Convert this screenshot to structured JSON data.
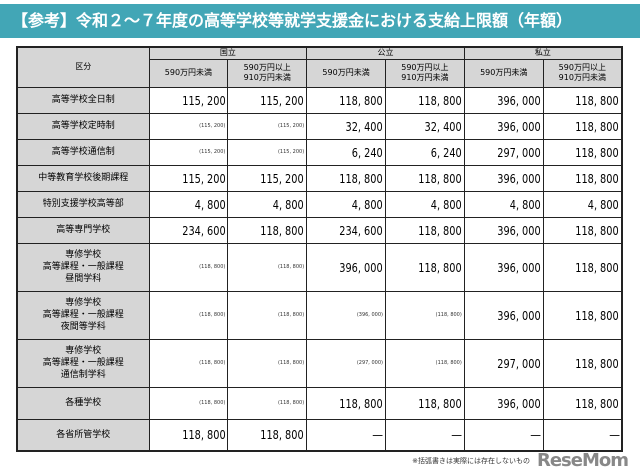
{
  "title": "【参考】令和２～７年度の高等学校等就学支援金における支給上限額（年額）",
  "header": {
    "category": "区分",
    "groups": [
      "国立",
      "公立",
      "私立"
    ],
    "sub": [
      "590万円未満",
      "590万円以上\n910万円未満"
    ]
  },
  "rows": [
    {
      "label": "高等学校全日制",
      "cells": [
        [
          "115, 200",
          0
        ],
        [
          "115, 200",
          0
        ],
        [
          "118, 800",
          0
        ],
        [
          "118, 800",
          0
        ],
        [
          "396, 000",
          0
        ],
        [
          "118, 800",
          0
        ]
      ]
    },
    {
      "label": "高等学校定時制",
      "cells": [
        [
          "(115, 200)",
          1
        ],
        [
          "(115, 200)",
          1
        ],
        [
          "32, 400",
          0
        ],
        [
          "32, 400",
          0
        ],
        [
          "396, 000",
          0
        ],
        [
          "118, 800",
          0
        ]
      ]
    },
    {
      "label": "高等学校通信制",
      "cells": [
        [
          "(115, 200)",
          1
        ],
        [
          "(115, 200)",
          1
        ],
        [
          "6, 240",
          0
        ],
        [
          "6, 240",
          0
        ],
        [
          "297, 000",
          0
        ],
        [
          "118, 800",
          0
        ]
      ]
    },
    {
      "label": "中等教育学校後期課程",
      "cells": [
        [
          "115, 200",
          0
        ],
        [
          "115, 200",
          0
        ],
        [
          "118, 800",
          0
        ],
        [
          "118, 800",
          0
        ],
        [
          "396, 000",
          0
        ],
        [
          "118, 800",
          0
        ]
      ]
    },
    {
      "label": "特別支援学校高等部",
      "cells": [
        [
          "4, 800",
          0
        ],
        [
          "4, 800",
          0
        ],
        [
          "4, 800",
          0
        ],
        [
          "4, 800",
          0
        ],
        [
          "4, 800",
          0
        ],
        [
          "4, 800",
          0
        ]
      ]
    },
    {
      "label": "高等専門学校",
      "cells": [
        [
          "234, 600",
          0
        ],
        [
          "118, 800",
          0
        ],
        [
          "234, 600",
          0
        ],
        [
          "118, 800",
          0
        ],
        [
          "396, 000",
          0
        ],
        [
          "118, 800",
          0
        ]
      ]
    },
    {
      "label": "専修学校\n高等課程・一般課程\n昼間学科",
      "cells": [
        [
          "(118, 800)",
          1
        ],
        [
          "(118, 800)",
          1
        ],
        [
          "396, 000",
          0
        ],
        [
          "118, 800",
          0
        ],
        [
          "396, 000",
          0
        ],
        [
          "118, 800",
          0
        ]
      ]
    },
    {
      "label": "専修学校\n高等課程・一般課程\n夜間等学科",
      "cells": [
        [
          "(118, 800)",
          1
        ],
        [
          "(118, 800)",
          1
        ],
        [
          "(396, 000)",
          1
        ],
        [
          "(118, 800)",
          1
        ],
        [
          "396, 000",
          0
        ],
        [
          "118, 800",
          0
        ]
      ]
    },
    {
      "label": "専修学校\n高等課程・一般課程\n通信制学科",
      "cells": [
        [
          "(118, 800)",
          1
        ],
        [
          "(118, 800)",
          1
        ],
        [
          "(297, 000)",
          1
        ],
        [
          "(118, 800)",
          1
        ],
        [
          "297, 000",
          0
        ],
        [
          "118, 800",
          0
        ]
      ]
    },
    {
      "label": "各種学校",
      "cells": [
        [
          "(118, 800)",
          1
        ],
        [
          "(118, 800)",
          1
        ],
        [
          "118, 800",
          0
        ],
        [
          "118, 800",
          0
        ],
        [
          "396, 000",
          0
        ],
        [
          "118, 800",
          0
        ]
      ]
    },
    {
      "label": "各省所管学校",
      "cells": [
        [
          "118, 800",
          0
        ],
        [
          "118, 800",
          0
        ],
        [
          "―",
          0
        ],
        [
          "―",
          0
        ],
        [
          "―",
          0
        ],
        [
          "―",
          0
        ]
      ]
    }
  ],
  "footnote": "※括弧書きは実際には存在しないもの",
  "logo": "ReseMom"
}
